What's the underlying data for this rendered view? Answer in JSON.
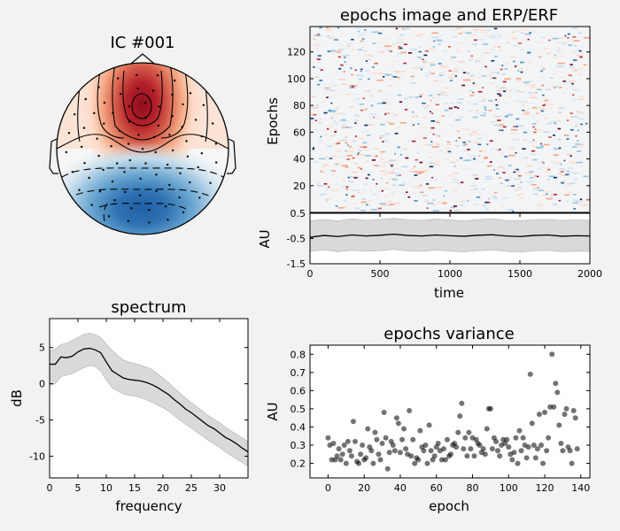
{
  "figure": {
    "background": "#f2f2f2"
  },
  "chart_data": [
    {
      "type": "topomap",
      "title": "IC #001",
      "colormap": "RdBu_r"
    },
    {
      "type": "heatmap",
      "title": "epochs image and ERP/ERF",
      "ylabel": "Epochs",
      "yticks": [
        20,
        40,
        60,
        80,
        100,
        120
      ],
      "ylim": [
        0,
        139
      ],
      "xlim": [
        0,
        2000
      ],
      "colormap": "RdBu_r"
    },
    {
      "type": "area",
      "ylabel": "AU",
      "xlabel": "time",
      "xticks": [
        0,
        500,
        1000,
        1500,
        2000
      ],
      "yticks": [
        0.5,
        -0.5,
        -1.5
      ],
      "ylim": [
        -1.5,
        0.5
      ],
      "xlim": [
        0,
        2000
      ],
      "series": [
        {
          "x": [
            0,
            100,
            200,
            300,
            400,
            500,
            600,
            700,
            800,
            900,
            1000,
            1100,
            1200,
            1300,
            1400,
            1500,
            1600,
            1700,
            1800,
            1900,
            2000
          ],
          "mean": [
            -0.45,
            -0.38,
            -0.42,
            -0.36,
            -0.4,
            -0.37,
            -0.33,
            -0.38,
            -0.4,
            -0.36,
            -0.39,
            -0.41,
            -0.37,
            -0.35,
            -0.4,
            -0.42,
            -0.38,
            -0.36,
            -0.41,
            -0.39,
            -0.4
          ],
          "upper": [
            0.2,
            0.25,
            0.2,
            0.28,
            0.22,
            0.26,
            0.3,
            0.24,
            0.22,
            0.27,
            0.23,
            0.2,
            0.25,
            0.28,
            0.22,
            0.2,
            0.24,
            0.26,
            0.22,
            0.24,
            0.22
          ],
          "lower": [
            -1.0,
            -0.95,
            -1.02,
            -0.97,
            -1.0,
            -0.98,
            -0.93,
            -0.99,
            -1.01,
            -0.96,
            -1.0,
            -1.03,
            -0.98,
            -0.95,
            -1.01,
            -1.04,
            -0.99,
            -0.97,
            -1.02,
            -1.0,
            -1.01
          ]
        }
      ]
    },
    {
      "type": "line",
      "title": "spectrum",
      "xlabel": "frequency",
      "ylabel": "dB",
      "xticks": [
        0,
        5,
        10,
        15,
        20,
        25,
        30
      ],
      "yticks": [
        5,
        0,
        -5,
        -10
      ],
      "xlim": [
        0,
        35
      ],
      "ylim": [
        -13,
        9
      ],
      "x": [
        0,
        1,
        2,
        3,
        4,
        5,
        6,
        7,
        8,
        9,
        10,
        11,
        12,
        13,
        14,
        15,
        16,
        17,
        18,
        19,
        20,
        21,
        22,
        23,
        24,
        25,
        26,
        27,
        28,
        29,
        30,
        31,
        32,
        33,
        34,
        35
      ],
      "mean": [
        2.7,
        2.7,
        3.7,
        3.6,
        3.8,
        4.4,
        4.8,
        4.9,
        4.7,
        4.3,
        3.0,
        1.8,
        1.3,
        0.8,
        0.6,
        0.5,
        0.4,
        0.2,
        -0.1,
        -0.5,
        -1.0,
        -1.5,
        -2.2,
        -2.8,
        -3.5,
        -4.0,
        -4.6,
        -5.2,
        -5.8,
        -6.2,
        -6.8,
        -7.4,
        -7.8,
        -8.3,
        -8.9,
        -9.4
      ],
      "upper": [
        4.6,
        4.8,
        5.4,
        5.6,
        6.0,
        6.4,
        6.8,
        7.0,
        6.8,
        6.4,
        5.5,
        4.6,
        3.9,
        3.3,
        3.0,
        2.8,
        2.6,
        2.3,
        2.0,
        1.4,
        0.8,
        0.1,
        -0.6,
        -1.3,
        -2.0,
        -2.6,
        -3.2,
        -3.8,
        -4.4,
        -4.9,
        -5.4,
        -6.0,
        -6.5,
        -7.0,
        -7.5,
        -8.0
      ],
      "lower": [
        -0.2,
        0.0,
        1.0,
        1.2,
        1.4,
        1.8,
        2.2,
        2.5,
        2.4,
        1.8,
        0.5,
        -0.5,
        -1.0,
        -1.4,
        -1.6,
        -1.7,
        -1.9,
        -2.2,
        -2.5,
        -2.9,
        -3.3,
        -3.8,
        -4.4,
        -5.0,
        -5.6,
        -6.1,
        -6.7,
        -7.2,
        -7.8,
        -8.3,
        -8.8,
        -9.4,
        -9.9,
        -10.4,
        -10.9,
        -11.4
      ]
    },
    {
      "type": "scatter",
      "title": "epochs variance",
      "xlabel": "epoch",
      "ylabel": "AU",
      "xticks": [
        0,
        20,
        40,
        60,
        80,
        100,
        120,
        140
      ],
      "yticks": [
        0.2,
        0.3,
        0.4,
        0.5,
        0.6,
        0.7,
        0.8
      ],
      "xlim": [
        -10,
        145
      ],
      "ylim": [
        0.12,
        0.85
      ],
      "values": [
        0.34,
        0.3,
        0.22,
        0.31,
        0.22,
        0.24,
        0.28,
        0.22,
        0.25,
        0.3,
        0.2,
        0.32,
        0.27,
        0.24,
        0.43,
        0.32,
        0.21,
        0.2,
        0.25,
        0.3,
        0.22,
        0.23,
        0.39,
        0.29,
        0.27,
        0.2,
        0.37,
        0.33,
        0.25,
        0.22,
        0.31,
        0.48,
        0.34,
        0.17,
        0.26,
        0.32,
        0.3,
        0.27,
        0.45,
        0.42,
        0.26,
        0.33,
        0.39,
        0.28,
        0.25,
        0.49,
        0.24,
        0.33,
        0.2,
        0.23,
        0.22,
        0.38,
        0.29,
        0.27,
        0.3,
        0.2,
        0.41,
        0.27,
        0.22,
        0.24,
        0.29,
        0.31,
        0.27,
        0.22,
        0.28,
        0.22,
        0.33,
        0.24,
        0.25,
        0.3,
        0.31,
        0.29,
        0.37,
        0.46,
        0.53,
        0.28,
        0.34,
        0.24,
        0.37,
        0.28,
        0.34,
        0.24,
        0.33,
        0.31,
        0.3,
        0.26,
        0.28,
        0.25,
        0.39,
        0.5,
        0.5,
        0.28,
        0.34,
        0.32,
        0.27,
        0.24,
        0.3,
        0.33,
        0.31,
        0.33,
        0.29,
        0.25,
        0.22,
        0.26,
        0.34,
        0.2,
        0.38,
        0.27,
        0.34,
        0.3,
        0.23,
        0.29,
        0.69,
        0.42,
        0.3,
        0.23,
        0.28,
        0.47,
        0.3,
        0.2,
        0.48,
        0.27,
        0.34,
        0.51,
        0.8,
        0.51,
        0.64,
        0.59,
        0.41,
        0.31,
        0.27,
        0.47,
        0.5,
        0.29,
        0.27,
        0.2,
        0.49,
        0.45,
        0.28
      ]
    }
  ]
}
